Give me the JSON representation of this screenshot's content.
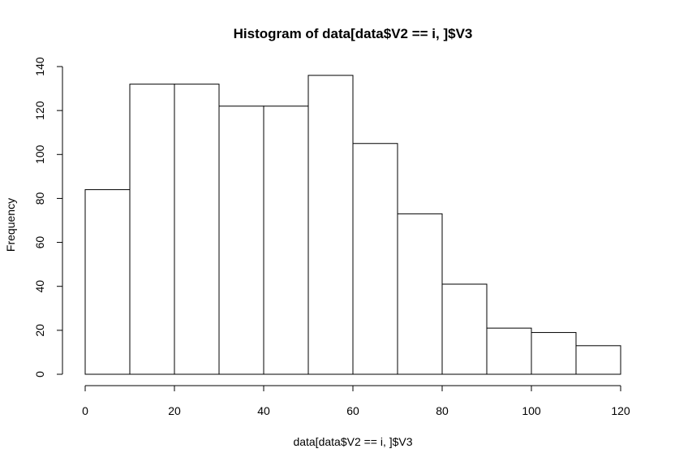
{
  "chart_data": {
    "type": "bar",
    "title": "Histogram of data[data$V2 == i, ]$V3",
    "xlabel": "data[data$V2 == i, ]$V3",
    "ylabel": "Frequency",
    "bins": [
      {
        "start": 0,
        "end": 10,
        "count": 84
      },
      {
        "start": 10,
        "end": 20,
        "count": 132
      },
      {
        "start": 20,
        "end": 30,
        "count": 132
      },
      {
        "start": 30,
        "end": 40,
        "count": 122
      },
      {
        "start": 40,
        "end": 50,
        "count": 122
      },
      {
        "start": 50,
        "end": 60,
        "count": 136
      },
      {
        "start": 60,
        "end": 70,
        "count": 105
      },
      {
        "start": 70,
        "end": 80,
        "count": 73
      },
      {
        "start": 80,
        "end": 90,
        "count": 41
      },
      {
        "start": 90,
        "end": 100,
        "count": 21
      },
      {
        "start": 100,
        "end": 110,
        "count": 19
      },
      {
        "start": 110,
        "end": 120,
        "count": 13
      }
    ],
    "xlim": [
      0,
      120
    ],
    "ylim": [
      0,
      140
    ],
    "xticks": [
      0,
      20,
      40,
      60,
      80,
      100,
      120
    ],
    "yticks": [
      0,
      20,
      40,
      60,
      80,
      100,
      120,
      140
    ],
    "grid": false,
    "colors": {
      "bar_fill": "#ffffff",
      "bar_stroke": "#000000"
    }
  }
}
